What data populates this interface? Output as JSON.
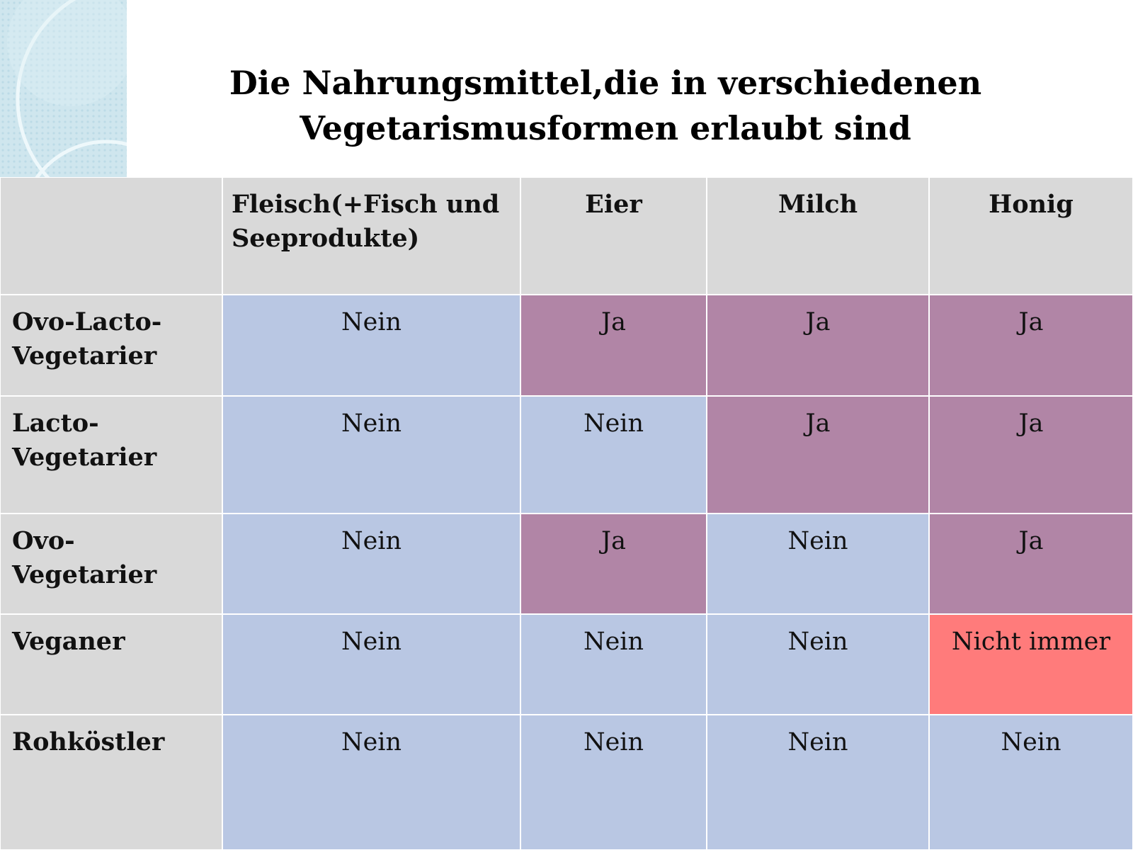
{
  "title": {
    "lines": [
      "Die Nahrungsmittel,die in verschiedenen",
      "Vegetarismusformen erlaubt sind"
    ]
  },
  "table": {
    "header": [
      "Fleisch(+Fisch und Seeprodukte)",
      "Eier",
      "Milch",
      "Honig"
    ],
    "header_color": "#d9d9d9",
    "rows": [
      {
        "label": "Ovo-Lacto-Vegetarier",
        "cells": [
          {
            "text": "Nein",
            "color": "#b9c7e3"
          },
          {
            "text": "Ja",
            "color": "#b185a6"
          },
          {
            "text": "Ja",
            "color": "#b185a6"
          },
          {
            "text": "Ja",
            "color": "#b185a6"
          }
        ]
      },
      {
        "label": "Lacto-Vegetarier",
        "cells": [
          {
            "text": "Nein",
            "color": "#b9c7e3"
          },
          {
            "text": "Nein",
            "color": "#b9c7e3"
          },
          {
            "text": "Ja",
            "color": "#b185a6"
          },
          {
            "text": "Ja",
            "color": "#b185a6"
          }
        ]
      },
      {
        "label": "Ovo-Vegetarier",
        "cells": [
          {
            "text": "Nein",
            "color": "#b9c7e3"
          },
          {
            "text": "Ja",
            "color": "#b185a6"
          },
          {
            "text": "Nein",
            "color": "#b9c7e3"
          },
          {
            "text": "Ja",
            "color": "#b185a6"
          }
        ]
      },
      {
        "label": "Veganer",
        "cells": [
          {
            "text": "Nein",
            "color": "#b9c7e3"
          },
          {
            "text": "Nein",
            "color": "#b9c7e3"
          },
          {
            "text": "Nein",
            "color": "#b9c7e3"
          },
          {
            "text": "Nicht immer",
            "color": "#ff7b7b"
          }
        ]
      },
      {
        "label": "Rohköstler",
        "cells": [
          {
            "text": "Nein",
            "color": "#b9c7e3"
          },
          {
            "text": "Nein",
            "color": "#b9c7e3"
          },
          {
            "text": "Nein",
            "color": "#b9c7e3"
          },
          {
            "text": "Nein",
            "color": "#b9c7e3"
          }
        ]
      }
    ]
  }
}
